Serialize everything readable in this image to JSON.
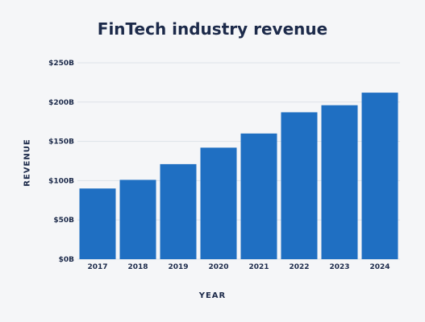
{
  "chart_data": {
    "type": "bar",
    "title": "FinTech industry revenue",
    "xlabel": "YEAR",
    "ylabel": "REVENUE",
    "categories": [
      "2017",
      "2018",
      "2019",
      "2020",
      "2021",
      "2022",
      "2023",
      "2024"
    ],
    "values": [
      90,
      101,
      121,
      142,
      160,
      187,
      196,
      212
    ],
    "ylim": [
      0,
      250
    ],
    "yticks": [
      0,
      50,
      100,
      150,
      200,
      250
    ],
    "ytick_labels": [
      "$0B",
      "$50B",
      "$100B",
      "$150B",
      "$200B",
      "$250B"
    ],
    "grid": true,
    "colors": {
      "bar": "#1f6fc2",
      "grid": "#dde1e7",
      "text": "#1c2a4a",
      "background": "#f5f6f8"
    }
  }
}
